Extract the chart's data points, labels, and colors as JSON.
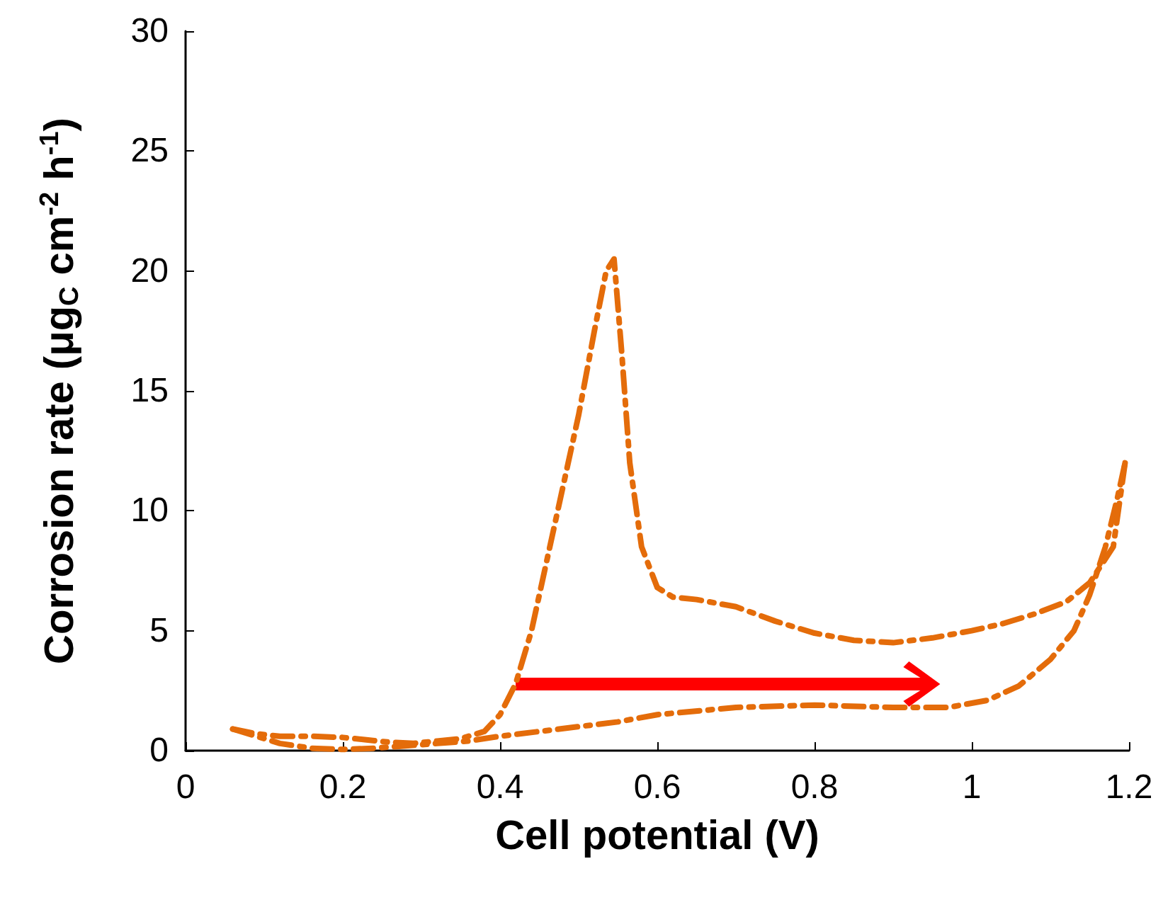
{
  "chart_data": {
    "type": "line",
    "xlabel": "Cell potential (V)",
    "ylabel": "Corrosion rate (μg$_{C}$ cm$^{-2}$ h$^{-1}$)",
    "series": [
      {
        "color": "#e46c0a",
        "x": [
          0.06,
          0.09,
          0.12,
          0.16,
          0.2,
          0.24,
          0.28,
          0.32,
          0.36,
          0.4,
          0.45,
          0.5,
          0.55,
          0.6,
          0.7,
          0.8,
          0.9,
          0.97,
          1.02,
          1.06,
          1.1,
          1.13,
          1.15,
          1.17,
          1.185,
          1.195
        ],
        "values": [
          0.9,
          0.6,
          0.3,
          0.1,
          0.05,
          0.1,
          0.2,
          0.3,
          0.4,
          0.6,
          0.8,
          1.0,
          1.2,
          1.5,
          1.8,
          1.9,
          1.8,
          1.8,
          2.1,
          2.7,
          3.8,
          5.0,
          6.5,
          8.5,
          10.5,
          12
        ]
      },
      {
        "color": "#e46c0a",
        "x": [
          1.195,
          1.18,
          1.15,
          1.12,
          1.08,
          1.04,
          1.0,
          0.95,
          0.9,
          0.85,
          0.8,
          0.75,
          0.7,
          0.65,
          0.62,
          0.6,
          0.58,
          0.565,
          0.555,
          0.545,
          0.535,
          0.52,
          0.5,
          0.48,
          0.46,
          0.44,
          0.42,
          0.4,
          0.38,
          0.35,
          0.32,
          0.29,
          0.26,
          0.23,
          0.2,
          0.16,
          0.12,
          0.09,
          0.06
        ],
        "values": [
          12,
          8.5,
          7.0,
          6.2,
          5.7,
          5.3,
          5.0,
          4.7,
          4.5,
          4.6,
          4.9,
          5.4,
          6.0,
          6.3,
          6.4,
          6.8,
          8.5,
          12,
          16.5,
          20.5,
          20,
          17.5,
          14,
          11,
          8,
          5,
          2.8,
          1.5,
          0.8,
          0.5,
          0.4,
          0.3,
          0.35,
          0.45,
          0.55,
          0.6,
          0.6,
          0.7,
          0.9
        ]
      }
    ],
    "xlim": [
      0,
      1.2
    ],
    "xticks": [
      0,
      0.2,
      0.4,
      0.6,
      0.8,
      1,
      1.2
    ],
    "ylim": [
      0,
      30
    ],
    "yticks": [
      0,
      5,
      10,
      15,
      20,
      25,
      30
    ],
    "grid": false,
    "marker": "none",
    "line_style": "dashed"
  }
}
